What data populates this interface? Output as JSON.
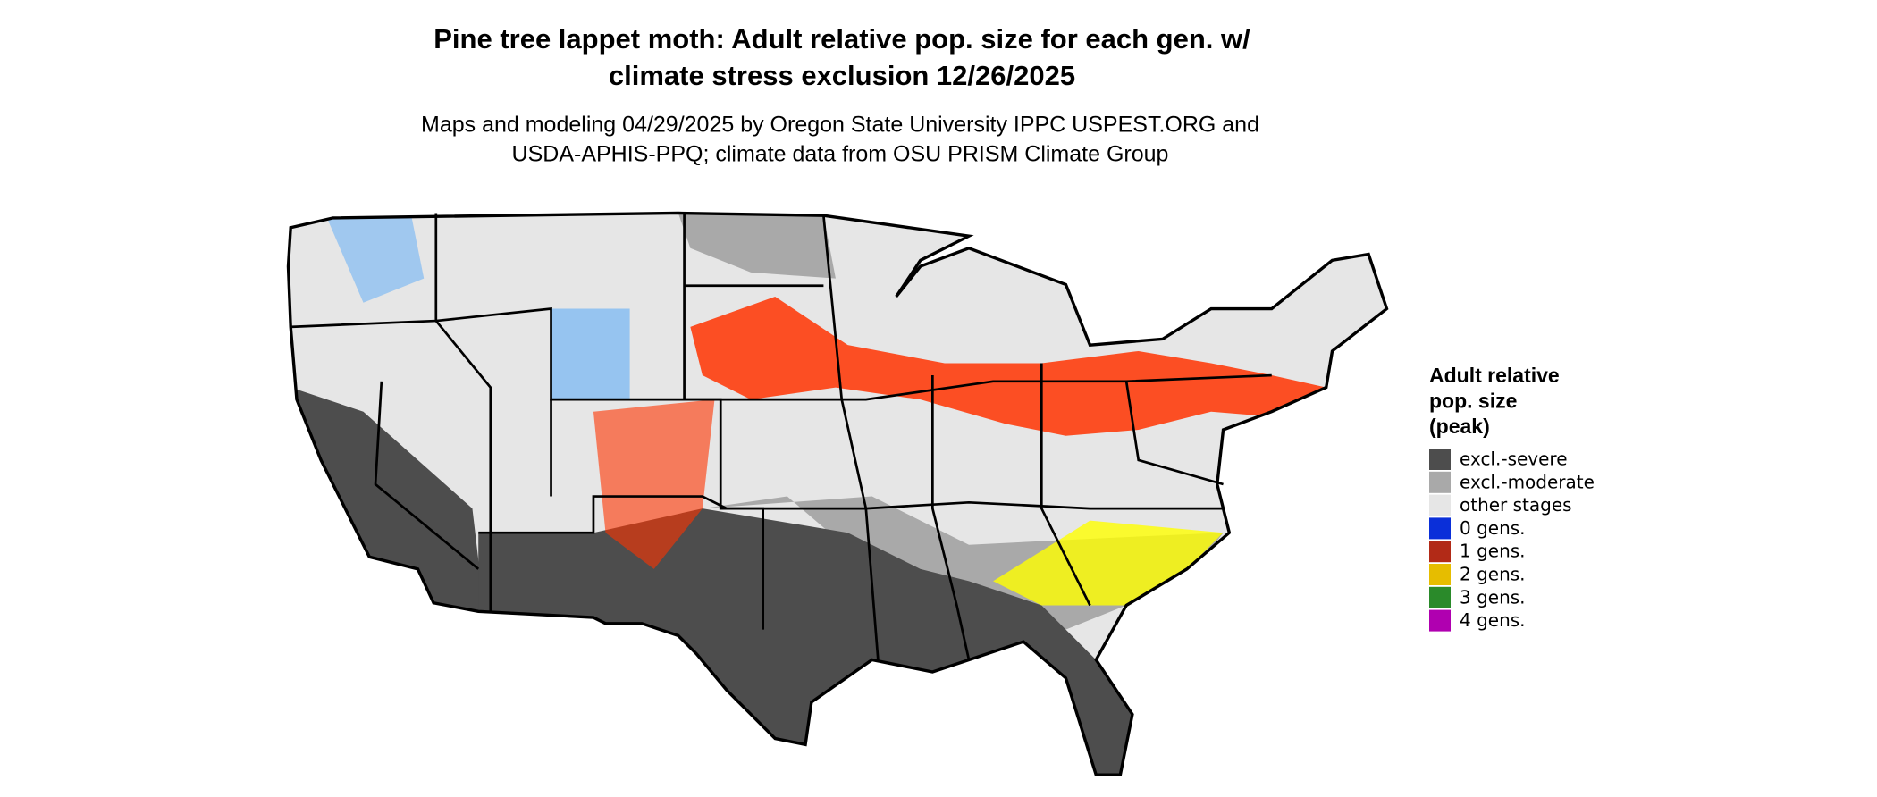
{
  "header": {
    "title": [
      "Pine tree lappet moth: Adult relative pop. size for each gen. w/",
      "climate stress exclusion 12/26/2025"
    ],
    "subtitle": [
      "Maps and modeling 04/29/2025 by Oregon State University IPPC USPEST.ORG and",
      "USDA-APHIS-PPQ; climate data from OSU PRISM Climate Group"
    ]
  },
  "legend": {
    "title": [
      "Adult relative",
      "pop. size",
      "(peak)"
    ],
    "items": [
      {
        "label": "excl.-severe",
        "color": "#4d4d4d"
      },
      {
        "label": "excl.-moderate",
        "color": "#a9a9a9"
      },
      {
        "label": "other stages",
        "color": "#e6e6e6"
      },
      {
        "label": "0 gens.",
        "color": "#0a2fd9"
      },
      {
        "label": "1 gens.",
        "color": "#b22a17"
      },
      {
        "label": "2 gens.",
        "color": "#e6bd00"
      },
      {
        "label": "3 gens.",
        "color": "#2a8a2a"
      },
      {
        "label": "4 gens.",
        "color": "#b000b0"
      }
    ]
  }
}
